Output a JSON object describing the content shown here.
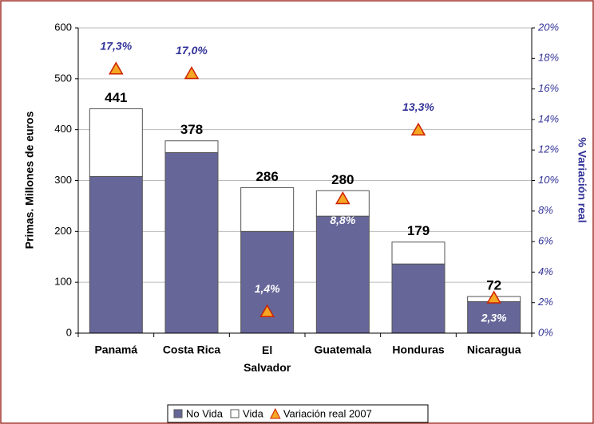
{
  "chart_data": {
    "type": "bar",
    "categories": [
      "Panamá",
      "Costa Rica",
      "El Salvador",
      "Guatemala",
      "Honduras",
      "Nicaragua"
    ],
    "series": [
      {
        "name": "No Vida",
        "color": "#666699",
        "values": [
          308,
          355,
          200,
          230,
          136,
          62
        ]
      },
      {
        "name": "Vida",
        "color": "#ffffff",
        "values": [
          133,
          23,
          86,
          50,
          43,
          10
        ]
      },
      {
        "name": "Variación real 2007",
        "type": "scatter",
        "axis": "y2",
        "color": "#f5a623",
        "values": [
          17.3,
          17.0,
          1.4,
          8.8,
          13.3,
          2.3
        ],
        "value_labels": [
          "17,3%",
          "17,0%",
          "1,4%",
          "8,8%",
          "13,3%",
          "2,3%"
        ]
      }
    ],
    "total_labels": [
      441,
      378,
      286,
      280,
      179,
      72
    ],
    "y_label": "Primas. Millones de euros",
    "y2_label": "% Variación real",
    "ylim": [
      0,
      600
    ],
    "yticks": [
      0,
      100,
      200,
      300,
      400,
      500,
      600
    ],
    "y2lim": [
      0,
      20
    ],
    "y2ticks": [
      {
        "value": 0,
        "label": "0%"
      },
      {
        "value": 2,
        "label": "2%"
      },
      {
        "value": 4,
        "label": "4%"
      },
      {
        "value": 6,
        "label": "6%"
      },
      {
        "value": 8,
        "label": "8%"
      },
      {
        "value": 10,
        "label": "10%"
      },
      {
        "value": 12,
        "label": "12%"
      },
      {
        "value": 14,
        "label": "14%"
      },
      {
        "value": 16,
        "label": "16%"
      },
      {
        "value": 18,
        "label": "18%"
      },
      {
        "value": 20,
        "label": "20%"
      }
    ],
    "grid": true,
    "legend": "bottom"
  }
}
